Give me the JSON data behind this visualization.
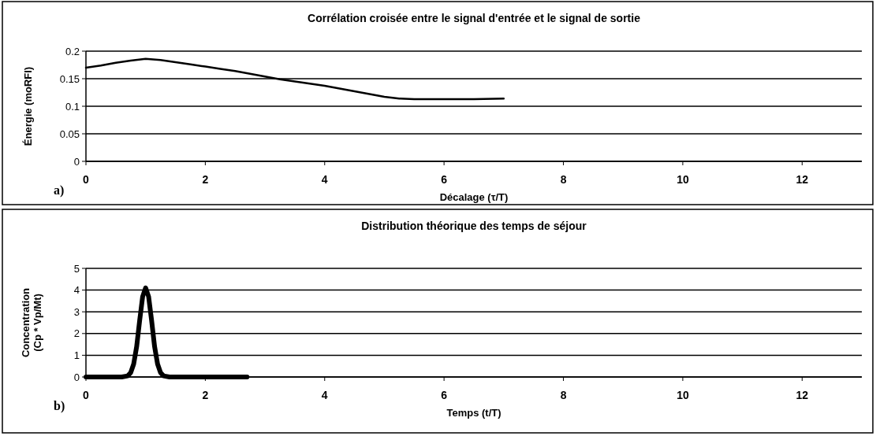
{
  "chart_data": [
    {
      "type": "line",
      "title": "Corrélation croisée entre le signal d'entrée et le signal de sortie",
      "xlabel": "Décalage (τ/T)",
      "ylabel": "Énergie (moRFI)",
      "annotations": [
        "a)"
      ],
      "x": [
        0,
        0.25,
        0.5,
        0.75,
        1,
        1.25,
        1.5,
        1.75,
        2,
        2.25,
        2.5,
        2.75,
        3,
        3.25,
        3.5,
        3.75,
        4,
        4.25,
        4.5,
        4.75,
        5,
        5.25,
        5.5,
        6,
        6.5,
        7
      ],
      "series": [
        {
          "color": "#000000",
          "values": [
            0.17,
            0.174,
            0.179,
            0.183,
            0.186,
            0.184,
            0.18,
            0.176,
            0.172,
            0.168,
            0.164,
            0.159,
            0.154,
            0.149,
            0.145,
            0.141,
            0.137,
            0.132,
            0.127,
            0.122,
            0.117,
            0.114,
            0.113,
            0.113,
            0.113,
            0.114
          ]
        }
      ],
      "xlim": [
        0,
        13
      ],
      "xticks": [
        0,
        2,
        4,
        6,
        8,
        10,
        12
      ],
      "ylim": [
        0,
        0.2
      ],
      "yticks": [
        0,
        0.05,
        0.1,
        0.15,
        0.2
      ],
      "grid": "y",
      "line_style": "solid"
    },
    {
      "type": "line",
      "title": "Distribution théorique des temps de séjour",
      "xlabel": "Temps (t/T)",
      "ylabel": "Concentration (Cp * Vp/Mt)",
      "annotations": [
        "b)"
      ],
      "x": [
        0,
        0.6,
        0.7,
        0.75,
        0.8,
        0.85,
        0.9,
        0.95,
        1,
        1.05,
        1.1,
        1.15,
        1.2,
        1.25,
        1.3,
        1.4,
        2.7
      ],
      "series": [
        {
          "color": "#000000",
          "values": [
            0,
            0,
            0.05,
            0.2,
            0.6,
            1.4,
            2.6,
            3.7,
            4.1,
            3.7,
            2.6,
            1.4,
            0.6,
            0.2,
            0.05,
            0,
            0
          ]
        }
      ],
      "xlim": [
        0,
        13
      ],
      "xticks": [
        0,
        2,
        4,
        6,
        8,
        10,
        12
      ],
      "ylim": [
        0,
        5
      ],
      "yticks": [
        0,
        1,
        2,
        3,
        4,
        5
      ],
      "grid": "y",
      "line_style": "solid"
    }
  ]
}
